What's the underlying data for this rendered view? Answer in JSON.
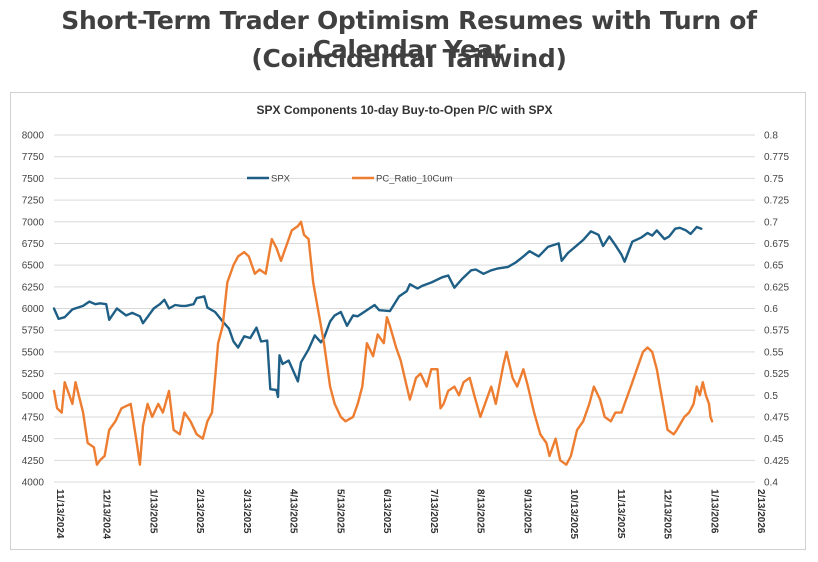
{
  "header": {
    "line1": "Short-Term Trader Optimism Resumes with Turn of Calendar Year",
    "line2": "(Coincidental Tailwind)"
  },
  "chart_data": {
    "type": "line",
    "title": "SPX Components 10-day Buy-to-Open P/C with SPX",
    "legend_position": "top-center",
    "grid": true,
    "y_left": {
      "min": 4000,
      "max": 8000,
      "ticks": [
        "4000",
        "4250",
        "4500",
        "4750",
        "5000",
        "5250",
        "5500",
        "5750",
        "6000",
        "6250",
        "6500",
        "6750",
        "7000",
        "7250",
        "7500",
        "7750",
        "8000"
      ]
    },
    "y_right": {
      "min": 0.4,
      "max": 0.8,
      "ticks": [
        "0.4",
        "0.425",
        "0.45",
        "0.475",
        "0.5",
        "0.525",
        "0.55",
        "0.575",
        "0.6",
        "0.625",
        "0.65",
        "0.675",
        "0.7",
        "0.725",
        "0.75",
        "0.775",
        "0.8"
      ]
    },
    "x_axis": {
      "start": "2024-11-13",
      "end": "2026-02-13",
      "ticks": [
        "11/13/2024",
        "12/13/2024",
        "1/13/2025",
        "2/13/2025",
        "3/13/2025",
        "4/13/2025",
        "5/13/2025",
        "6/13/2025",
        "7/13/2025",
        "8/13/2025",
        "9/13/2025",
        "10/13/2025",
        "11/13/2025",
        "12/13/2025",
        "1/13/2026",
        "2/13/2026"
      ]
    },
    "series": [
      {
        "name": "SPX",
        "axis": "left",
        "color": "#1f5f86",
        "points": [
          [
            "2024-11-13",
            6000
          ],
          [
            "2024-11-16",
            5880
          ],
          [
            "2024-11-20",
            5900
          ],
          [
            "2024-11-25",
            5990
          ],
          [
            "2024-12-02",
            6030
          ],
          [
            "2024-12-06",
            6080
          ],
          [
            "2024-12-10",
            6050
          ],
          [
            "2024-12-13",
            6060
          ],
          [
            "2024-12-17",
            6050
          ],
          [
            "2024-12-19",
            5870
          ],
          [
            "2024-12-24",
            6000
          ],
          [
            "2024-12-30",
            5920
          ],
          [
            "2025-01-03",
            5950
          ],
          [
            "2025-01-08",
            5910
          ],
          [
            "2025-01-10",
            5830
          ],
          [
            "2025-01-15",
            5950
          ],
          [
            "2025-01-17",
            6000
          ],
          [
            "2025-01-21",
            6050
          ],
          [
            "2025-01-24",
            6100
          ],
          [
            "2025-01-27",
            6000
          ],
          [
            "2025-01-31",
            6040
          ],
          [
            "2025-02-04",
            6030
          ],
          [
            "2025-02-07",
            6030
          ],
          [
            "2025-02-12",
            6050
          ],
          [
            "2025-02-14",
            6120
          ],
          [
            "2025-02-19",
            6140
          ],
          [
            "2025-02-21",
            6010
          ],
          [
            "2025-02-26",
            5960
          ],
          [
            "2025-03-03",
            5850
          ],
          [
            "2025-03-07",
            5770
          ],
          [
            "2025-03-10",
            5620
          ],
          [
            "2025-03-13",
            5550
          ],
          [
            "2025-03-17",
            5680
          ],
          [
            "2025-03-21",
            5660
          ],
          [
            "2025-03-25",
            5780
          ],
          [
            "2025-03-28",
            5620
          ],
          [
            "2025-04-01",
            5630
          ],
          [
            "2025-04-03",
            5070
          ],
          [
            "2025-04-07",
            5060
          ],
          [
            "2025-04-08",
            4980
          ],
          [
            "2025-04-09",
            5460
          ],
          [
            "2025-04-11",
            5360
          ],
          [
            "2025-04-15",
            5400
          ],
          [
            "2025-04-18",
            5280
          ],
          [
            "2025-04-21",
            5160
          ],
          [
            "2025-04-23",
            5380
          ],
          [
            "2025-04-28",
            5530
          ],
          [
            "2025-05-02",
            5690
          ],
          [
            "2025-05-06",
            5610
          ],
          [
            "2025-05-08",
            5660
          ],
          [
            "2025-05-12",
            5850
          ],
          [
            "2025-05-15",
            5920
          ],
          [
            "2025-05-19",
            5960
          ],
          [
            "2025-05-23",
            5800
          ],
          [
            "2025-05-27",
            5920
          ],
          [
            "2025-05-30",
            5910
          ],
          [
            "2025-06-04",
            5970
          ],
          [
            "2025-06-10",
            6040
          ],
          [
            "2025-06-13",
            5980
          ],
          [
            "2025-06-20",
            5970
          ],
          [
            "2025-06-26",
            6140
          ],
          [
            "2025-07-01",
            6200
          ],
          [
            "2025-07-03",
            6280
          ],
          [
            "2025-07-08",
            6230
          ],
          [
            "2025-07-11",
            6260
          ],
          [
            "2025-07-17",
            6300
          ],
          [
            "2025-07-24",
            6360
          ],
          [
            "2025-07-28",
            6380
          ],
          [
            "2025-08-01",
            6240
          ],
          [
            "2025-08-06",
            6340
          ],
          [
            "2025-08-12",
            6440
          ],
          [
            "2025-08-15",
            6450
          ],
          [
            "2025-08-20",
            6400
          ],
          [
            "2025-08-25",
            6440
          ],
          [
            "2025-08-29",
            6460
          ],
          [
            "2025-09-05",
            6480
          ],
          [
            "2025-09-10",
            6530
          ],
          [
            "2025-09-15",
            6600
          ],
          [
            "2025-09-19",
            6660
          ],
          [
            "2025-09-25",
            6600
          ],
          [
            "2025-10-01",
            6710
          ],
          [
            "2025-10-08",
            6750
          ],
          [
            "2025-10-10",
            6550
          ],
          [
            "2025-10-14",
            6640
          ],
          [
            "2025-10-20",
            6730
          ],
          [
            "2025-10-24",
            6790
          ],
          [
            "2025-10-29",
            6890
          ],
          [
            "2025-11-03",
            6850
          ],
          [
            "2025-11-06",
            6720
          ],
          [
            "2025-11-10",
            6830
          ],
          [
            "2025-11-14",
            6730
          ],
          [
            "2025-11-18",
            6620
          ],
          [
            "2025-11-20",
            6540
          ],
          [
            "2025-11-25",
            6770
          ],
          [
            "2025-12-01",
            6820
          ],
          [
            "2025-12-05",
            6870
          ],
          [
            "2025-12-08",
            6840
          ],
          [
            "2025-12-11",
            6900
          ],
          [
            "2025-12-16",
            6800
          ],
          [
            "2025-12-19",
            6830
          ],
          [
            "2025-12-23",
            6920
          ],
          [
            "2025-12-26",
            6930
          ],
          [
            "2025-12-30",
            6900
          ],
          [
            "2026-01-02",
            6860
          ],
          [
            "2026-01-06",
            6940
          ],
          [
            "2026-01-09",
            6920
          ]
        ]
      },
      {
        "name": "PC_Ratio_10Cum",
        "axis": "right",
        "color": "#ed7d31",
        "points": [
          [
            "2024-11-13",
            0.505
          ],
          [
            "2024-11-15",
            0.485
          ],
          [
            "2024-11-18",
            0.48
          ],
          [
            "2024-11-20",
            0.515
          ],
          [
            "2024-11-22",
            0.505
          ],
          [
            "2024-11-25",
            0.49
          ],
          [
            "2024-11-27",
            0.515
          ],
          [
            "2024-12-02",
            0.48
          ],
          [
            "2024-12-05",
            0.445
          ],
          [
            "2024-12-09",
            0.44
          ],
          [
            "2024-12-11",
            0.42
          ],
          [
            "2024-12-13",
            0.425
          ],
          [
            "2024-12-16",
            0.43
          ],
          [
            "2024-12-19",
            0.46
          ],
          [
            "2024-12-23",
            0.47
          ],
          [
            "2024-12-27",
            0.485
          ],
          [
            "2025-01-02",
            0.49
          ],
          [
            "2025-01-06",
            0.445
          ],
          [
            "2025-01-08",
            0.42
          ],
          [
            "2025-01-10",
            0.465
          ],
          [
            "2025-01-13",
            0.49
          ],
          [
            "2025-01-16",
            0.475
          ],
          [
            "2025-01-20",
            0.49
          ],
          [
            "2025-01-23",
            0.48
          ],
          [
            "2025-01-27",
            0.505
          ],
          [
            "2025-01-30",
            0.46
          ],
          [
            "2025-02-03",
            0.455
          ],
          [
            "2025-02-06",
            0.48
          ],
          [
            "2025-02-10",
            0.47
          ],
          [
            "2025-02-14",
            0.455
          ],
          [
            "2025-02-18",
            0.45
          ],
          [
            "2025-02-21",
            0.47
          ],
          [
            "2025-02-24",
            0.48
          ],
          [
            "2025-02-26",
            0.52
          ],
          [
            "2025-02-28",
            0.56
          ],
          [
            "2025-03-03",
            0.58
          ],
          [
            "2025-03-06",
            0.63
          ],
          [
            "2025-03-10",
            0.65
          ],
          [
            "2025-03-13",
            0.66
          ],
          [
            "2025-03-17",
            0.665
          ],
          [
            "2025-03-20",
            0.66
          ],
          [
            "2025-03-24",
            0.64
          ],
          [
            "2025-03-27",
            0.645
          ],
          [
            "2025-03-31",
            0.64
          ],
          [
            "2025-04-02",
            0.66
          ],
          [
            "2025-04-04",
            0.68
          ],
          [
            "2025-04-07",
            0.67
          ],
          [
            "2025-04-10",
            0.655
          ],
          [
            "2025-04-14",
            0.675
          ],
          [
            "2025-04-17",
            0.69
          ],
          [
            "2025-04-21",
            0.695
          ],
          [
            "2025-04-23",
            0.7
          ],
          [
            "2025-04-25",
            0.685
          ],
          [
            "2025-04-28",
            0.68
          ],
          [
            "2025-05-01",
            0.63
          ],
          [
            "2025-05-05",
            0.59
          ],
          [
            "2025-05-08",
            0.56
          ],
          [
            "2025-05-12",
            0.51
          ],
          [
            "2025-05-15",
            0.49
          ],
          [
            "2025-05-19",
            0.475
          ],
          [
            "2025-05-22",
            0.47
          ],
          [
            "2025-05-27",
            0.475
          ],
          [
            "2025-05-30",
            0.49
          ],
          [
            "2025-06-02",
            0.51
          ],
          [
            "2025-06-05",
            0.56
          ],
          [
            "2025-06-09",
            0.545
          ],
          [
            "2025-06-12",
            0.57
          ],
          [
            "2025-06-16",
            0.56
          ],
          [
            "2025-06-18",
            0.59
          ],
          [
            "2025-06-20",
            0.58
          ],
          [
            "2025-06-24",
            0.555
          ],
          [
            "2025-06-27",
            0.54
          ],
          [
            "2025-07-01",
            0.51
          ],
          [
            "2025-07-03",
            0.495
          ],
          [
            "2025-07-07",
            0.52
          ],
          [
            "2025-07-10",
            0.525
          ],
          [
            "2025-07-14",
            0.51
          ],
          [
            "2025-07-17",
            0.53
          ],
          [
            "2025-07-21",
            0.53
          ],
          [
            "2025-07-23",
            0.485
          ],
          [
            "2025-07-25",
            0.49
          ],
          [
            "2025-07-28",
            0.505
          ],
          [
            "2025-08-01",
            0.51
          ],
          [
            "2025-08-04",
            0.5
          ],
          [
            "2025-08-07",
            0.515
          ],
          [
            "2025-08-11",
            0.52
          ],
          [
            "2025-08-14",
            0.5
          ],
          [
            "2025-08-18",
            0.475
          ],
          [
            "2025-08-21",
            0.49
          ],
          [
            "2025-08-25",
            0.51
          ],
          [
            "2025-08-28",
            0.49
          ],
          [
            "2025-09-02",
            0.535
          ],
          [
            "2025-09-04",
            0.55
          ],
          [
            "2025-09-08",
            0.52
          ],
          [
            "2025-09-11",
            0.51
          ],
          [
            "2025-09-15",
            0.53
          ],
          [
            "2025-09-18",
            0.51
          ],
          [
            "2025-09-22",
            0.48
          ],
          [
            "2025-09-26",
            0.455
          ],
          [
            "2025-09-30",
            0.445
          ],
          [
            "2025-10-02",
            0.43
          ],
          [
            "2025-10-06",
            0.45
          ],
          [
            "2025-10-09",
            0.425
          ],
          [
            "2025-10-13",
            0.42
          ],
          [
            "2025-10-16",
            0.43
          ],
          [
            "2025-10-20",
            0.46
          ],
          [
            "2025-10-24",
            0.47
          ],
          [
            "2025-10-28",
            0.49
          ],
          [
            "2025-10-31",
            0.51
          ],
          [
            "2025-11-04",
            0.495
          ],
          [
            "2025-11-07",
            0.475
          ],
          [
            "2025-11-11",
            0.47
          ],
          [
            "2025-11-14",
            0.48
          ],
          [
            "2025-11-18",
            0.48
          ],
          [
            "2025-11-20",
            0.49
          ],
          [
            "2025-11-24",
            0.51
          ],
          [
            "2025-11-28",
            0.53
          ],
          [
            "2025-12-02",
            0.55
          ],
          [
            "2025-12-05",
            0.555
          ],
          [
            "2025-12-08",
            0.55
          ],
          [
            "2025-12-11",
            0.53
          ],
          [
            "2025-12-15",
            0.49
          ],
          [
            "2025-12-18",
            0.46
          ],
          [
            "2025-12-22",
            0.455
          ],
          [
            "2025-12-24",
            0.46
          ],
          [
            "2025-12-29",
            0.475
          ],
          [
            "2026-01-01",
            0.48
          ],
          [
            "2026-01-04",
            0.49
          ],
          [
            "2026-01-06",
            0.51
          ],
          [
            "2026-01-08",
            0.5
          ],
          [
            "2026-01-10",
            0.515
          ],
          [
            "2026-01-12",
            0.5
          ],
          [
            "2026-01-14",
            0.49
          ],
          [
            "2026-01-15",
            0.475
          ],
          [
            "2026-01-16",
            0.47
          ]
        ]
      }
    ]
  }
}
